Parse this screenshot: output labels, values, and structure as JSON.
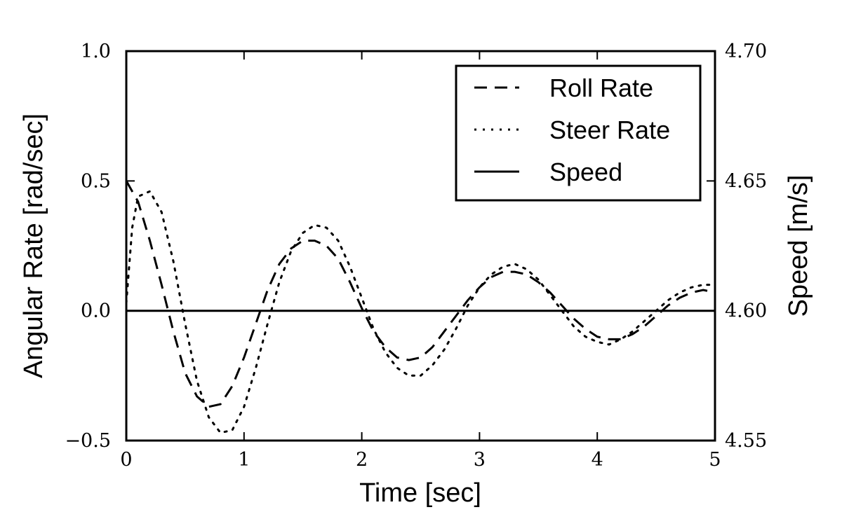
{
  "chart_data": {
    "type": "line",
    "xlabel": "Time [sec]",
    "ylabel": "Angular Rate [rad/sec]",
    "y2label": "Speed [m/s]",
    "xlim": [
      0,
      5
    ],
    "ylim": [
      -0.5,
      1.0
    ],
    "y2lim": [
      4.55,
      4.7
    ],
    "x_ticks": [
      "0",
      "1",
      "2",
      "3",
      "4",
      "5"
    ],
    "y_ticks": [
      "−0.5",
      "0.0",
      "0.5",
      "1.0"
    ],
    "y2_ticks": [
      "4.55",
      "4.60",
      "4.65",
      "4.70"
    ],
    "legend_position": "top-right",
    "grid": false,
    "series": [
      {
        "name": "Roll Rate",
        "axis": "left",
        "style": "dashed",
        "color": "#000000",
        "x": [
          0,
          0.1,
          0.2,
          0.3,
          0.4,
          0.5,
          0.6,
          0.7,
          0.8,
          0.9,
          1.0,
          1.1,
          1.2,
          1.3,
          1.4,
          1.5,
          1.6,
          1.7,
          1.8,
          1.9,
          2.0,
          2.1,
          2.2,
          2.3,
          2.4,
          2.5,
          2.6,
          2.7,
          2.8,
          2.9,
          3.0,
          3.1,
          3.2,
          3.3,
          3.4,
          3.5,
          3.6,
          3.7,
          3.8,
          3.9,
          4.0,
          4.1,
          4.2,
          4.3,
          4.4,
          4.5,
          4.6,
          4.7,
          4.8,
          4.9,
          5.0
        ],
        "values": [
          0.5,
          0.42,
          0.27,
          0.1,
          -0.08,
          -0.24,
          -0.33,
          -0.37,
          -0.36,
          -0.29,
          -0.18,
          -0.05,
          0.08,
          0.18,
          0.24,
          0.27,
          0.27,
          0.25,
          0.2,
          0.11,
          0.01,
          -0.08,
          -0.14,
          -0.18,
          -0.19,
          -0.18,
          -0.14,
          -0.08,
          -0.02,
          0.04,
          0.09,
          0.13,
          0.15,
          0.15,
          0.14,
          0.11,
          0.07,
          0.02,
          -0.03,
          -0.07,
          -0.1,
          -0.11,
          -0.11,
          -0.09,
          -0.06,
          -0.02,
          0.02,
          0.05,
          0.07,
          0.08,
          0.07
        ]
      },
      {
        "name": "Steer Rate",
        "axis": "left",
        "style": "dotted",
        "color": "#000000",
        "x": [
          0,
          0.05,
          0.1,
          0.2,
          0.3,
          0.4,
          0.5,
          0.6,
          0.7,
          0.8,
          0.9,
          1.0,
          1.1,
          1.2,
          1.3,
          1.4,
          1.5,
          1.6,
          1.7,
          1.8,
          1.9,
          2.0,
          2.1,
          2.2,
          2.3,
          2.4,
          2.5,
          2.6,
          2.7,
          2.8,
          2.9,
          3.0,
          3.1,
          3.2,
          3.3,
          3.4,
          3.5,
          3.6,
          3.7,
          3.8,
          3.9,
          4.0,
          4.1,
          4.2,
          4.3,
          4.4,
          4.5,
          4.6,
          4.7,
          4.8,
          4.9,
          5.0
        ],
        "values": [
          0.03,
          0.32,
          0.44,
          0.46,
          0.38,
          0.19,
          -0.05,
          -0.27,
          -0.41,
          -0.47,
          -0.46,
          -0.37,
          -0.22,
          -0.05,
          0.11,
          0.23,
          0.3,
          0.33,
          0.32,
          0.27,
          0.17,
          0.05,
          -0.07,
          -0.16,
          -0.22,
          -0.25,
          -0.25,
          -0.21,
          -0.15,
          -0.07,
          0.02,
          0.09,
          0.14,
          0.17,
          0.18,
          0.16,
          0.12,
          0.06,
          0.0,
          -0.06,
          -0.1,
          -0.12,
          -0.13,
          -0.11,
          -0.08,
          -0.04,
          0.0,
          0.04,
          0.07,
          0.09,
          0.1,
          0.1
        ]
      },
      {
        "name": "Speed",
        "axis": "right",
        "style": "solid",
        "color": "#000000",
        "x": [
          0,
          5
        ],
        "values": [
          4.6,
          4.6
        ]
      }
    ]
  }
}
